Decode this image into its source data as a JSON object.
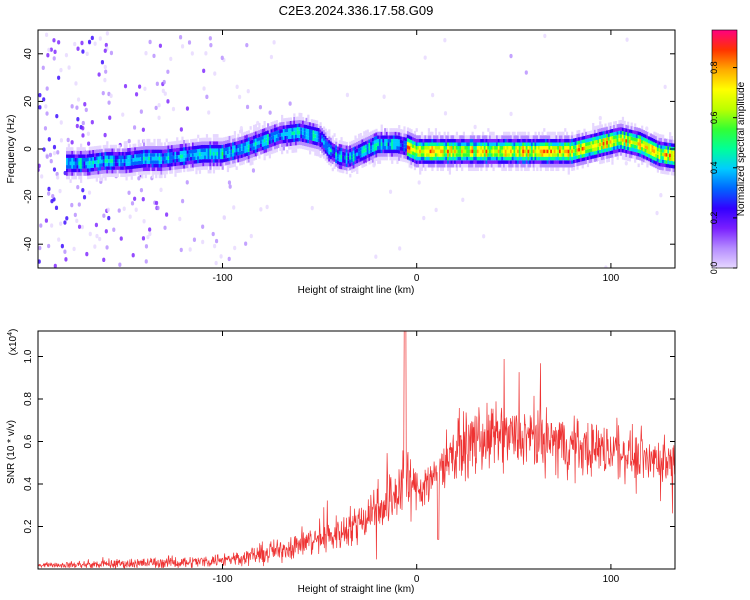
{
  "title": "C2E3.2024.336.17.58.G09",
  "chart_data": [
    {
      "type": "heatmap",
      "xlabel": "Height of straight line (km)",
      "ylabel": "Frequency (Hz)",
      "xlim": [
        -195,
        133
      ],
      "ylim": [
        -50,
        50
      ],
      "xticks": [
        -100,
        0,
        100
      ],
      "yticks": [
        -40,
        -20,
        0,
        20,
        40
      ],
      "ridge": {
        "x": [
          -180,
          -170,
          -160,
          -150,
          -140,
          -130,
          -120,
          -110,
          -100,
          -90,
          -80,
          -70,
          -60,
          -55,
          -50,
          -45,
          -40,
          -35,
          -30,
          -25,
          -20,
          -15,
          -10,
          -5,
          0,
          10,
          20,
          30,
          40,
          50,
          60,
          70,
          80,
          90,
          95,
          100,
          105,
          110,
          115,
          120,
          125,
          133
        ],
        "y": [
          -6,
          -6,
          -5,
          -5,
          -4,
          -4,
          -3,
          -2,
          -2,
          0,
          3,
          6,
          7,
          6,
          5,
          0,
          -3,
          -4,
          -2,
          0,
          2,
          2,
          2,
          1,
          -1,
          -1,
          -1,
          -1,
          -1,
          -1,
          -1,
          -1,
          -1,
          1,
          2,
          3,
          4,
          3,
          2,
          0,
          -2,
          -3
        ]
      },
      "colorbar": {
        "label": "Normalized spectral amplitude",
        "range": [
          0,
          0.95
        ],
        "ticks": [
          0.0,
          0.2,
          0.4,
          0.6,
          0.8
        ],
        "tick_labels": [
          "0.0",
          "0.2",
          "0.4",
          "0.6",
          "0.8"
        ],
        "colors": [
          "#ffffff",
          "#e6d7ff",
          "#b58cff",
          "#7a1fff",
          "#3300ff",
          "#0066ff",
          "#00ccff",
          "#00ff99",
          "#33ff33",
          "#bbff00",
          "#ffff00",
          "#ffaa00",
          "#ff3300",
          "#ff0080"
        ]
      }
    },
    {
      "type": "line",
      "xlabel": "Height of straight line (km)",
      "ylabel": "SNR (10 * v/v)",
      "y_multiplier": "(x10",
      "y_multiplier_exp": "4",
      "y_multiplier_close": ")",
      "xlim": [
        -195,
        133
      ],
      "ylim": [
        0,
        1.12
      ],
      "xticks": [
        -100,
        0,
        100
      ],
      "yticks": [
        0.2,
        0.4,
        0.6,
        0.8,
        1.0
      ],
      "ytick_labels": [
        "0.2",
        "0.4",
        "0.6",
        "0.8",
        "1.0"
      ],
      "color": "#ee3333",
      "envelope": {
        "x": [
          -195,
          -170,
          -150,
          -130,
          -110,
          -100,
          -90,
          -80,
          -70,
          -60,
          -50,
          -40,
          -30,
          -25,
          -20,
          -15,
          -10,
          -6,
          -4,
          0,
          5,
          10,
          15,
          20,
          30,
          40,
          50,
          60,
          70,
          80,
          90,
          100,
          110,
          120,
          133
        ],
        "mean": [
          0.02,
          0.02,
          0.025,
          0.03,
          0.035,
          0.045,
          0.055,
          0.07,
          0.09,
          0.12,
          0.14,
          0.17,
          0.22,
          0.26,
          0.3,
          0.32,
          0.36,
          0.45,
          0.4,
          0.38,
          0.4,
          0.45,
          0.52,
          0.56,
          0.6,
          0.62,
          0.62,
          0.61,
          0.6,
          0.58,
          0.57,
          0.56,
          0.54,
          0.52,
          0.5
        ],
        "spread": [
          0.01,
          0.02,
          0.025,
          0.03,
          0.03,
          0.035,
          0.04,
          0.05,
          0.06,
          0.07,
          0.08,
          0.09,
          0.1,
          0.12,
          0.13,
          0.14,
          0.15,
          0.2,
          0.15,
          0.12,
          0.12,
          0.12,
          0.13,
          0.15,
          0.16,
          0.16,
          0.16,
          0.15,
          0.15,
          0.14,
          0.14,
          0.13,
          0.12,
          0.12,
          0.12
        ]
      }
    }
  ]
}
